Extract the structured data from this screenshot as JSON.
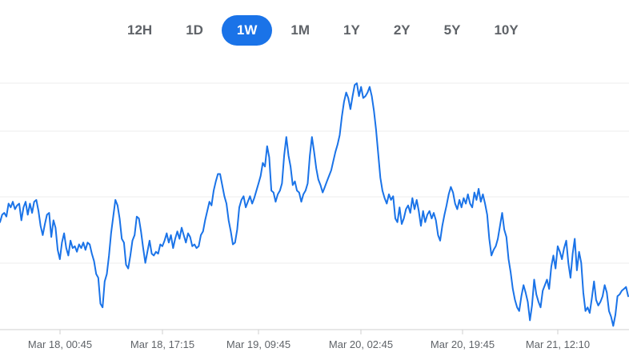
{
  "range_tabs": [
    {
      "label": "12H",
      "active": false
    },
    {
      "label": "1D",
      "active": false
    },
    {
      "label": "1W",
      "active": true
    },
    {
      "label": "1M",
      "active": false
    },
    {
      "label": "1Y",
      "active": false
    },
    {
      "label": "2Y",
      "active": false
    },
    {
      "label": "5Y",
      "active": false
    },
    {
      "label": "10Y",
      "active": false
    }
  ],
  "colors": {
    "line": "#1a73e8",
    "active_tab_bg": "#1a73e8",
    "tab_text": "#5f6368",
    "grid": "#eeeeee",
    "axis_text": "#5f6368"
  },
  "chart_data": {
    "type": "line",
    "title": "",
    "xlabel": "",
    "ylabel": "",
    "x_tick_labels": [
      "Mar 18, 00:45",
      "Mar 18, 17:15",
      "Mar 19, 09:45",
      "Mar 20, 02:45",
      "Mar 20, 19:45",
      "Mar 21, 12:10"
    ],
    "grid": "horizontal",
    "y_tick_labels_visible": false,
    "series": [
      {
        "values": [
          58,
          62,
          63,
          61,
          68,
          66,
          69,
          65,
          67,
          68,
          59,
          66,
          69,
          62,
          68,
          63,
          69,
          70,
          64,
          56,
          51,
          57,
          62,
          63,
          50,
          59,
          55,
          43,
          38,
          47,
          52,
          44,
          40,
          48,
          44,
          45,
          42,
          46,
          44,
          47,
          43,
          47,
          46,
          41,
          37,
          30,
          28,
          14,
          12,
          26,
          30,
          40,
          52,
          61,
          70,
          67,
          60,
          49,
          47,
          35,
          33,
          40,
          48,
          51,
          61,
          60,
          53,
          44,
          36,
          42,
          48,
          41,
          40,
          42,
          41,
          46,
          45,
          48,
          52,
          47,
          51,
          44,
          49,
          53,
          49,
          55,
          51,
          47,
          52,
          50,
          45,
          46,
          44,
          45,
          51,
          53,
          59,
          64,
          69,
          67,
          75,
          80,
          84,
          84,
          78,
          72,
          68,
          59,
          53,
          46,
          47,
          54,
          66,
          70,
          72,
          66,
          69,
          72,
          68,
          71,
          75,
          79,
          83,
          90,
          88,
          99,
          93,
          75,
          74,
          69,
          73,
          75,
          79,
          94,
          104,
          94,
          88,
          78,
          80,
          75,
          74,
          69,
          73,
          75,
          79,
          94,
          104,
          96,
          87,
          81,
          78,
          74,
          77,
          80,
          83,
          86,
          91,
          96,
          100,
          105,
          115,
          123,
          128,
          125,
          119,
          126,
          132,
          133,
          126,
          131,
          125,
          126,
          128,
          131,
          126,
          118,
          108,
          95,
          82,
          75,
          71,
          68,
          73,
          70,
          72,
          60,
          58,
          66,
          57,
          60,
          65,
          67,
          63,
          71,
          65,
          70,
          64,
          56,
          64,
          58,
          62,
          64,
          60,
          63,
          59,
          51,
          48,
          56,
          62,
          67,
          73,
          77,
          74,
          68,
          65,
          70,
          66,
          71,
          68,
          73,
          68,
          66,
          74,
          70,
          76,
          69,
          73,
          68,
          62,
          49,
          40,
          43,
          45,
          49,
          56,
          63,
          54,
          50,
          38,
          31,
          22,
          16,
          12,
          10,
          18,
          24,
          20,
          15,
          5,
          13,
          27,
          19,
          15,
          12,
          21,
          24,
          27,
          22,
          34,
          40,
          33,
          45,
          42,
          38,
          44,
          48,
          36,
          28,
          41,
          49,
          32,
          42,
          36,
          20,
          10,
          12,
          9,
          17,
          26,
          16,
          13,
          15,
          18,
          24,
          20,
          10,
          7,
          2,
          8,
          18,
          19,
          21,
          22,
          23,
          18
        ]
      }
    ]
  }
}
